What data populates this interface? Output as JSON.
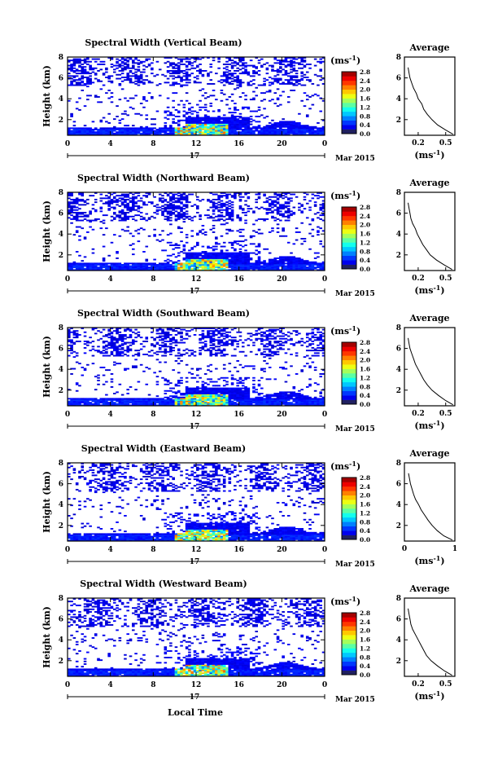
{
  "figure": {
    "xlabel": "Local Time",
    "date_label": "Mar 2015",
    "day_label": "17",
    "colorbar_unit": "(ms",
    "colorbar_unit_exp": "-1",
    "average_title": "Average"
  },
  "chart_data": [
    {
      "type": "heatmap",
      "title": "Spectral Width (Vertical Beam)",
      "ylabel": "Height (km)",
      "xlim": [
        0,
        24
      ],
      "ylim": [
        0.5,
        8
      ],
      "xticks": [
        "0",
        "4",
        "8",
        "12",
        "16",
        "20",
        "0"
      ],
      "yticks": [
        "2",
        "4",
        "6",
        "8"
      ],
      "colorbar": {
        "min": 0,
        "max": 2.8,
        "ticks": [
          "0.0",
          "0.4",
          "0.8",
          "1.2",
          "1.6",
          "2.0",
          "2.4",
          "2.8"
        ]
      },
      "average_profile": {
        "xlim": [
          0.05,
          0.6
        ],
        "xticks": [
          "0.2",
          "0.5"
        ],
        "xlabel": "(ms",
        "xlabel_exp": "-1",
        "yticks": [
          "2",
          "4",
          "6",
          "8"
        ],
        "heights": [
          0.6,
          1.0,
          1.5,
          2.0,
          2.5,
          3.0,
          3.5,
          4.0,
          4.5,
          5.0,
          5.5,
          6.0,
          6.5,
          7.0
        ],
        "values": [
          0.58,
          0.5,
          0.41,
          0.35,
          0.3,
          0.26,
          0.24,
          0.2,
          0.18,
          0.15,
          0.13,
          0.11,
          0.1,
          0.09
        ]
      }
    },
    {
      "type": "heatmap",
      "title": "Spectral Width (Northward Beam)",
      "ylabel": "Height (km)",
      "xlim": [
        0,
        24
      ],
      "ylim": [
        0.5,
        8
      ],
      "xticks": [
        "0",
        "4",
        "8",
        "12",
        "16",
        "20",
        "0"
      ],
      "yticks": [
        "2",
        "4",
        "6",
        "8"
      ],
      "colorbar": {
        "min": 0,
        "max": 2.8,
        "ticks": [
          "0.0",
          "0.4",
          "0.8",
          "1.2",
          "1.6",
          "2.0",
          "2.4",
          "2.8"
        ]
      },
      "average_profile": {
        "xlim": [
          0.05,
          0.6
        ],
        "xticks": [
          "0.2",
          "0.5"
        ],
        "xlabel": "(ms",
        "xlabel_exp": "-1",
        "yticks": [
          "2",
          "4",
          "6",
          "8"
        ],
        "heights": [
          0.6,
          1.0,
          1.5,
          2.0,
          2.5,
          3.0,
          3.5,
          4.0,
          4.5,
          5.0,
          5.5,
          6.0,
          6.5,
          7.0
        ],
        "values": [
          0.57,
          0.49,
          0.4,
          0.33,
          0.29,
          0.25,
          0.22,
          0.19,
          0.17,
          0.14,
          0.12,
          0.11,
          0.1,
          0.09
        ]
      }
    },
    {
      "type": "heatmap",
      "title": "Spectral Width (Southward Beam)",
      "ylabel": "Height (km)",
      "xlim": [
        0,
        24
      ],
      "ylim": [
        0.5,
        8
      ],
      "xticks": [
        "0",
        "4",
        "8",
        "12",
        "16",
        "20",
        "0"
      ],
      "yticks": [
        "2",
        "4",
        "6",
        "8"
      ],
      "colorbar": {
        "min": 0,
        "max": 2.8,
        "ticks": [
          "0.0",
          "0.4",
          "0.8",
          "1.2",
          "1.6",
          "2.0",
          "2.4",
          "2.8"
        ]
      },
      "average_profile": {
        "xlim": [
          0.05,
          0.6
        ],
        "xticks": [
          "0.2",
          "0.5"
        ],
        "xlabel": "(ms",
        "xlabel_exp": "-1",
        "yticks": [
          "2",
          "4",
          "6",
          "8"
        ],
        "heights": [
          0.6,
          1.0,
          1.5,
          2.0,
          2.5,
          3.0,
          3.5,
          4.0,
          4.5,
          5.0,
          5.5,
          6.0,
          6.5,
          7.0
        ],
        "values": [
          0.58,
          0.5,
          0.42,
          0.35,
          0.3,
          0.26,
          0.23,
          0.2,
          0.17,
          0.15,
          0.13,
          0.11,
          0.1,
          0.09
        ]
      }
    },
    {
      "type": "heatmap",
      "title": "Spectral Width (Eastward Beam)",
      "ylabel": "Height (km)",
      "xlim": [
        0,
        24
      ],
      "ylim": [
        0.5,
        8
      ],
      "xticks": [
        "0",
        "4",
        "8",
        "12",
        "16",
        "20",
        "0"
      ],
      "yticks": [
        "2",
        "4",
        "6",
        "8"
      ],
      "colorbar": {
        "min": 0,
        "max": 2.8,
        "ticks": [
          "0.0",
          "0.4",
          "0.8",
          "1.2",
          "1.6",
          "2.0",
          "2.4",
          "2.8"
        ]
      },
      "average_profile": {
        "xlim": [
          0,
          1
        ],
        "xticks": [
          "0",
          "1"
        ],
        "xlabel": "(ms",
        "xlabel_exp": "-1",
        "yticks": [
          "2",
          "4",
          "6",
          "8"
        ],
        "heights": [
          0.6,
          1.0,
          1.5,
          2.0,
          2.5,
          3.0,
          3.5,
          4.0,
          4.5,
          5.0,
          5.5,
          6.0,
          6.5,
          7.0
        ],
        "values": [
          0.95,
          0.78,
          0.65,
          0.55,
          0.47,
          0.4,
          0.33,
          0.28,
          0.22,
          0.18,
          0.15,
          0.12,
          0.1,
          0.08
        ]
      }
    },
    {
      "type": "heatmap",
      "title": "Spectral Width (Westward Beam)",
      "ylabel": "Height (km)",
      "xlim": [
        0,
        24
      ],
      "ylim": [
        0.5,
        8
      ],
      "xticks": [
        "0",
        "4",
        "8",
        "12",
        "16",
        "20",
        "0"
      ],
      "yticks": [
        "2",
        "4",
        "6",
        "8"
      ],
      "colorbar": {
        "min": 0,
        "max": 2.8,
        "ticks": [
          "0.0",
          "0.4",
          "0.8",
          "1.2",
          "1.6",
          "2.0",
          "2.4",
          "2.8"
        ]
      },
      "average_profile": {
        "xlim": [
          0.05,
          0.6
        ],
        "xticks": [
          "0.2",
          "0.5"
        ],
        "xlabel": "(ms",
        "xlabel_exp": "-1",
        "yticks": [
          "2",
          "4",
          "6",
          "8"
        ],
        "heights": [
          0.6,
          1.0,
          1.5,
          2.0,
          2.5,
          3.0,
          3.5,
          4.0,
          4.5,
          5.0,
          5.5,
          6.0,
          6.5,
          7.0
        ],
        "values": [
          0.57,
          0.49,
          0.41,
          0.34,
          0.29,
          0.26,
          0.23,
          0.2,
          0.17,
          0.14,
          0.12,
          0.11,
          0.1,
          0.09
        ]
      }
    }
  ]
}
